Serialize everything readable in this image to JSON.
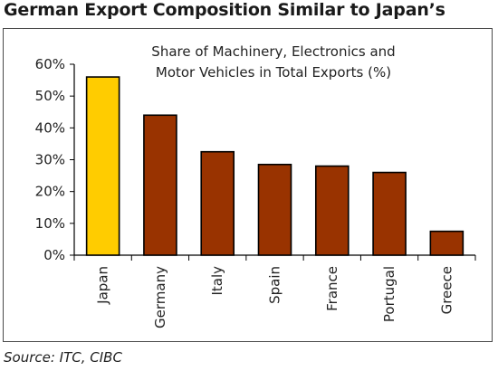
{
  "headline": "German Export Composition Similar to Japan’s",
  "source": "Source: ITC, CIBC",
  "chart_data": {
    "type": "bar",
    "title": "Share of Machinery, Electronics and Motor Vehicles in Total Exports (%)",
    "title_lines": [
      "Share of Machinery, Electronics and",
      "Motor Vehicles in Total Exports (%)"
    ],
    "categories": [
      "Japan",
      "Germany",
      "Italy",
      "Spain",
      "France",
      "Portugal",
      "Greece"
    ],
    "values": [
      56,
      44,
      32.5,
      28.5,
      28,
      26,
      7.5
    ],
    "ylim": [
      0,
      60
    ],
    "yticks": [
      0,
      10,
      20,
      30,
      40,
      50,
      60
    ],
    "ytick_labels": [
      "0%",
      "10%",
      "20%",
      "30%",
      "40%",
      "50%",
      "60%"
    ],
    "grid": false,
    "legend": "none",
    "highlight_category": "Japan",
    "colors": {
      "highlight": "#FFCC00",
      "bar": "#993300",
      "bar_edge": "#000000"
    }
  }
}
